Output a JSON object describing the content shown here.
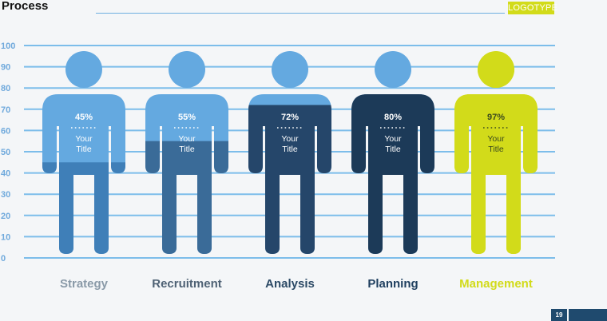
{
  "header": {
    "title": "Process",
    "logo": "LOGOTYPE",
    "page_number": "19"
  },
  "chart_data": {
    "type": "bar",
    "title": "",
    "xlabel": "",
    "ylabel": "",
    "ylim": [
      0,
      100
    ],
    "yticks": [
      "0",
      "10",
      "20",
      "30",
      "40",
      "50",
      "60",
      "70",
      "80",
      "90",
      "100"
    ],
    "grid": true,
    "categories": [
      "Strategy",
      "Recruitment",
      "Analysis",
      "Planning",
      "Management"
    ],
    "values": [
      45,
      55,
      72,
      80,
      97
    ],
    "value_labels": [
      "45%",
      "55%",
      "72%",
      "80%",
      "97%"
    ],
    "figure_label": "Your Title",
    "colors": {
      "strategy": "#3f7fb8",
      "recruitment": "#3a6b98",
      "analysis": "#25466a",
      "planning": "#1c3a58",
      "management": "#d2db1a",
      "empty_light": "#64a9e0",
      "grid": "#7cbdea",
      "axis_text": "#6fa9dc"
    },
    "label_colors": [
      "#8a9aa8",
      "#4f6275",
      "#2c4a66",
      "#1f3f5f",
      "#d2db1a"
    ]
  }
}
